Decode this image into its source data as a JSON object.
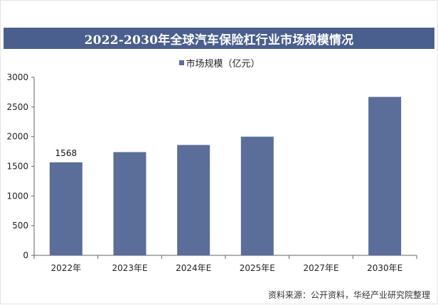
{
  "title": "2022-2030年全球汽车保险杠行业市场规模情况",
  "source": "资料来源：公开资料，华经产业研究院整理",
  "colors": {
    "bar": "#5b6d99",
    "title_bg": "#4a5f8d",
    "axis": "#666666"
  },
  "chart_data": {
    "type": "bar",
    "title": "2022-2030年全球汽车保险杠行业市场规模情况",
    "categories": [
      "2022年",
      "2023年E",
      "2024年E",
      "2025年E",
      "2027年E",
      "2030年E"
    ],
    "series": [
      {
        "name": "市场规模（亿元）",
        "values": [
          1568,
          1740,
          1860,
          2000,
          0,
          2670
        ]
      }
    ],
    "data_labels": [
      "1568",
      "",
      "",
      "",
      "",
      ""
    ],
    "yticks": [
      0,
      500,
      1000,
      1500,
      2000,
      2500,
      3000
    ],
    "ylim": [
      0,
      3000
    ],
    "xlabel": "",
    "ylabel": "",
    "legend_position": "top",
    "grid": false
  }
}
